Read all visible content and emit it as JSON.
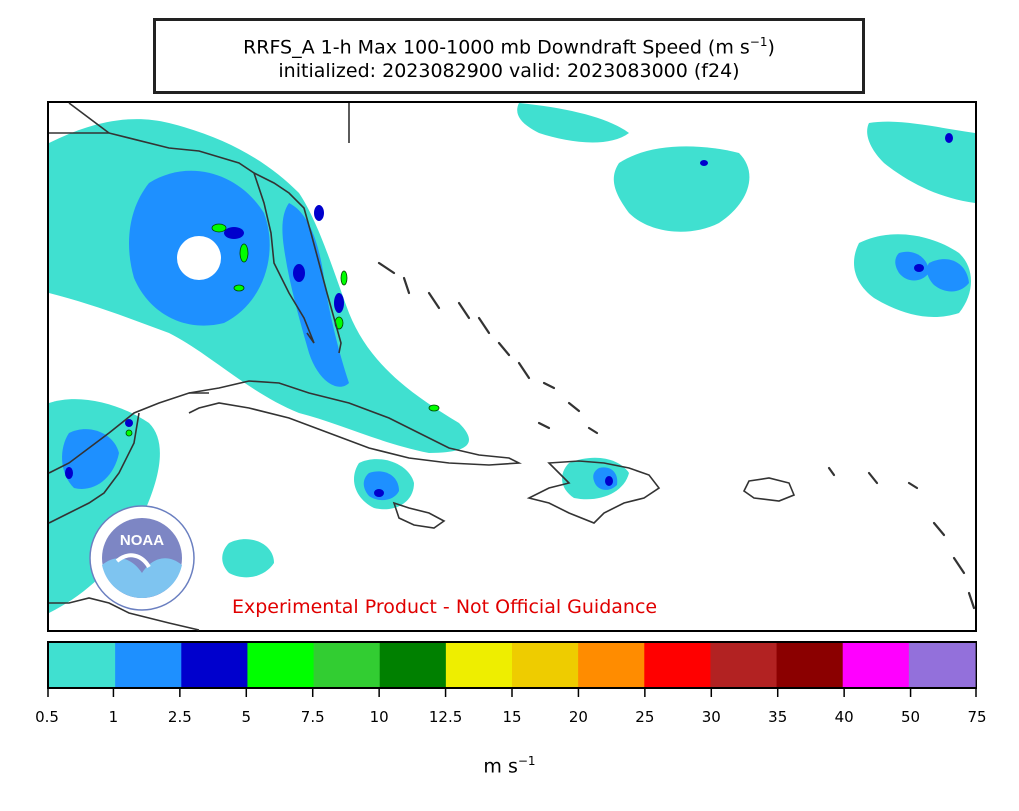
{
  "title": {
    "line1": "RRFS_A 1-h Max 100-1000 mb Downdraft Speed (m s",
    "line1_sup": "−1",
    "line1_end": ")",
    "line2": "initialized: 2023082900 valid: 2023083000 (f24)"
  },
  "disclaimer": "Experimental Product - Not Official Guidance",
  "logo": {
    "icon": "noaa-logo",
    "text": "NOAA"
  },
  "colorbar": {
    "ticks": [
      "0.5",
      "1",
      "2.5",
      "5",
      "7.5",
      "10",
      "12.5",
      "15",
      "20",
      "25",
      "30",
      "35",
      "40",
      "50",
      "75"
    ],
    "colors": [
      "#40e0d0",
      "#1e90ff",
      "#0000cd",
      "#00ff00",
      "#32cd32",
      "#008000",
      "#eeee00",
      "#eecc00",
      "#ff8c00",
      "#ff0000",
      "#b22222",
      "#8b0000",
      "#ff00ff",
      "#9370db"
    ],
    "units_base": "m s",
    "units_sup": "−1"
  }
}
